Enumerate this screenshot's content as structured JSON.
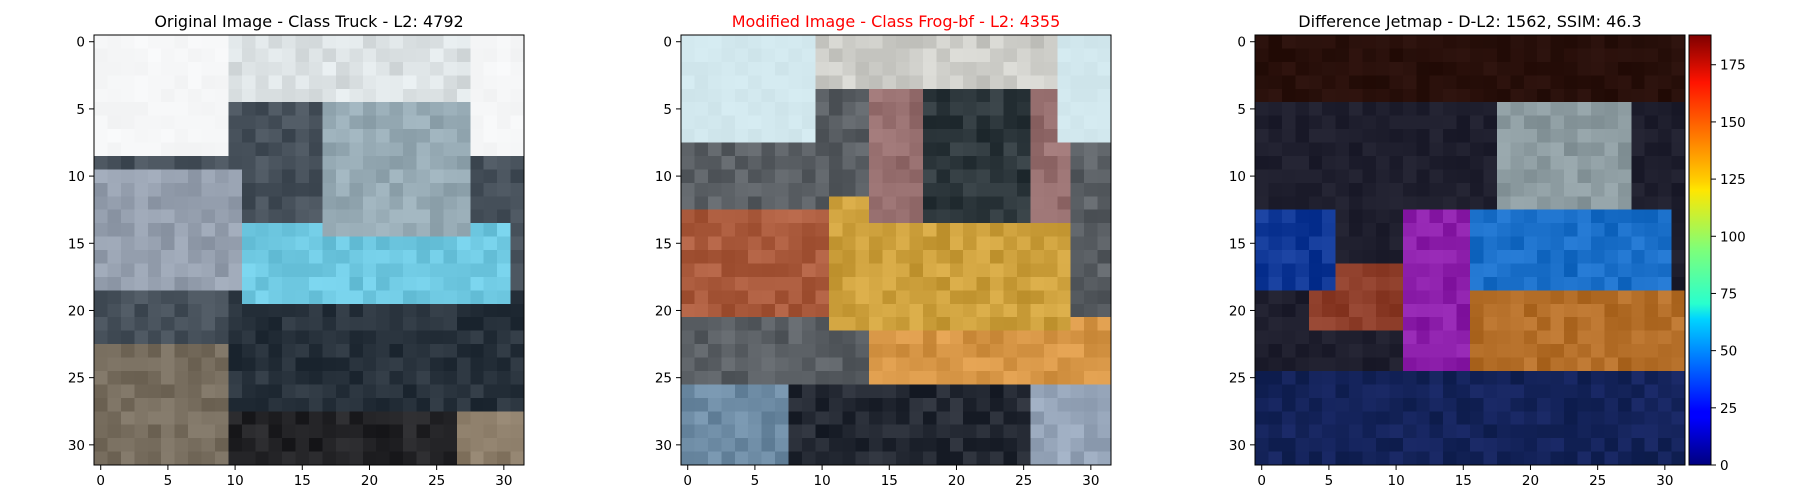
{
  "chart_data": [
    {
      "type": "image",
      "title": "Original Image - Class Truck - L2: 4792",
      "title_color": "#000000",
      "xticks": [
        0,
        5,
        10,
        15,
        20,
        25,
        30
      ],
      "yticks": [
        0,
        5,
        10,
        15,
        20,
        25,
        30
      ],
      "xlim": [
        -0.5,
        31.5
      ],
      "ylim": [
        31.5,
        -0.5
      ],
      "image_size": [
        32,
        32
      ]
    },
    {
      "type": "image",
      "title": "Modified Image - Class Frog-bf - L2: 4355",
      "title_color": "#ff0000",
      "xticks": [
        0,
        5,
        10,
        15,
        20,
        25,
        30
      ],
      "yticks": [
        0,
        5,
        10,
        15,
        20,
        25,
        30
      ],
      "xlim": [
        -0.5,
        31.5
      ],
      "ylim": [
        31.5,
        -0.5
      ],
      "image_size": [
        32,
        32
      ]
    },
    {
      "type": "heatmap",
      "title": "Difference Jetmap - D-L2: 1562, SSIM: 46.3",
      "title_color": "#000000",
      "colormap": "jet",
      "xticks": [
        0,
        5,
        10,
        15,
        20,
        25,
        30
      ],
      "yticks": [
        0,
        5,
        10,
        15,
        20,
        25,
        30
      ],
      "xlim": [
        -0.5,
        31.5
      ],
      "ylim": [
        31.5,
        -0.5
      ],
      "image_size": [
        32,
        32
      ],
      "colorbar": {
        "range": [
          0,
          188
        ],
        "ticks": [
          0,
          25,
          50,
          75,
          100,
          125,
          150,
          175
        ]
      }
    }
  ]
}
